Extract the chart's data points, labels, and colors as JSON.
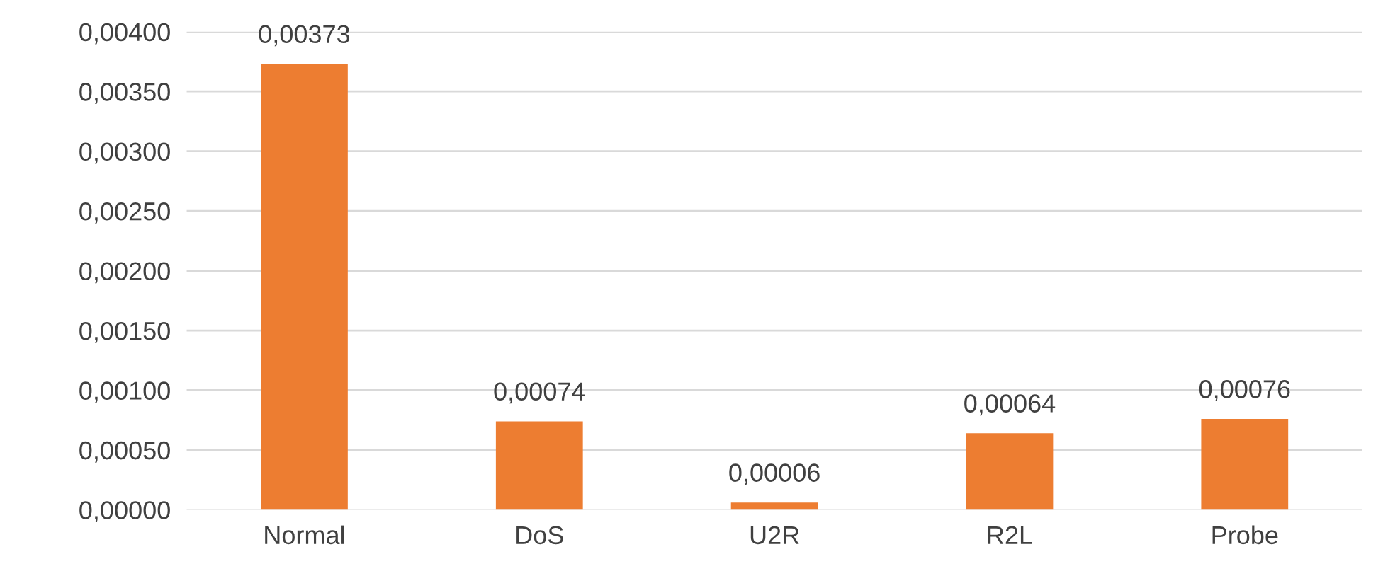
{
  "chart_data": {
    "type": "bar",
    "categories": [
      "Normal",
      "DoS",
      "U2R",
      "R2L",
      "Probe"
    ],
    "values": [
      0.00373,
      0.00074,
      6e-05,
      0.00064,
      0.00076
    ],
    "value_labels": [
      "0,00373",
      "0,00074",
      "0,00006",
      "0,00064",
      "0,00076"
    ],
    "color": "#ed7d31",
    "ylim": [
      0,
      0.004
    ],
    "yticks": [
      {
        "value": 0,
        "label": "0,00000"
      },
      {
        "value": 0.0005,
        "label": "0,00050"
      },
      {
        "value": 0.001,
        "label": "0,00100"
      },
      {
        "value": 0.0015,
        "label": "0,00150"
      },
      {
        "value": 0.002,
        "label": "0,00200"
      },
      {
        "value": 0.0025,
        "label": "0,00250"
      },
      {
        "value": 0.003,
        "label": "0,00300"
      },
      {
        "value": 0.0035,
        "label": "0,00350"
      },
      {
        "value": 0.004,
        "label": "0,00400"
      }
    ],
    "grid": "y",
    "legend": false
  }
}
